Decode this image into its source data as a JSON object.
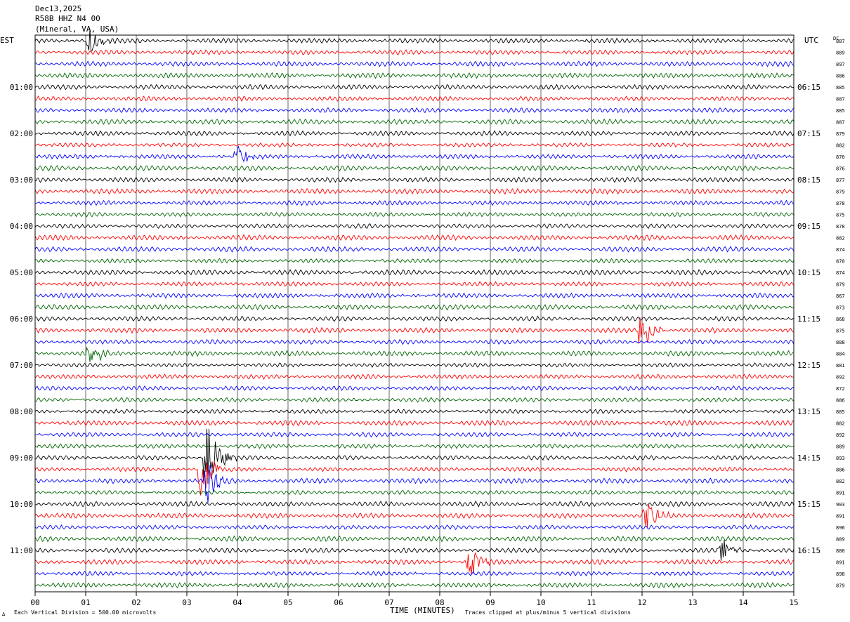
{
  "header": {
    "date": "Dec13,2025",
    "station": "R58B HHZ N4 00",
    "location": "(Mineral, VA, USA)"
  },
  "labels": {
    "left_tz": "EST",
    "right_tz": "UTC",
    "dc_header": "DC",
    "xaxis_title": "TIME (MINUTES)",
    "footer_left": "Each Vertical Division =  500.00 microvolts",
    "footer_right": "Traces clipped at plus/minus 5 vertical divisions",
    "footer_mark": "∆"
  },
  "chart_data": {
    "type": "line",
    "title": "R58B HHZ N4 00",
    "xlabel": "TIME (MINUTES)",
    "xlim": [
      0,
      15
    ],
    "x_ticks": [
      "00",
      "01",
      "02",
      "03",
      "04",
      "05",
      "06",
      "07",
      "08",
      "09",
      "10",
      "11",
      "12",
      "13",
      "14",
      "15"
    ],
    "trace_colors": [
      "#000000",
      "#ff0000",
      "#0000ff",
      "#006600"
    ],
    "left_hour_labels": [
      "01:00",
      "02:00",
      "03:00",
      "04:00",
      "05:00",
      "06:00",
      "07:00",
      "08:00",
      "09:00",
      "10:00",
      "11:00"
    ],
    "right_hour_labels": [
      "06:15",
      "07:15",
      "08:15",
      "09:15",
      "10:15",
      "11:15",
      "12:15",
      "13:15",
      "14:15",
      "15:15",
      "16:15"
    ],
    "dc_offsets": [
      887,
      889,
      897,
      886,
      885,
      887,
      885,
      887,
      879,
      882,
      870,
      876,
      877,
      879,
      878,
      875,
      878,
      882,
      874,
      870,
      874,
      879,
      867,
      873,
      868,
      875,
      888,
      884,
      881,
      892,
      872,
      886,
      885,
      882,
      892,
      889,
      893,
      886,
      882,
      891,
      903,
      891,
      896,
      889,
      880,
      891,
      898,
      879
    ],
    "events": [
      {
        "row": 0,
        "minute": 1.1,
        "amplitude": 1.6
      },
      {
        "row": 10,
        "minute": 4.0,
        "amplitude": 1.4
      },
      {
        "row": 25,
        "minute": 12.0,
        "amplitude": 2.4
      },
      {
        "row": 27,
        "minute": 1.1,
        "amplitude": 1.6
      },
      {
        "row": 36,
        "minute": 3.4,
        "amplitude": 5.0
      },
      {
        "row": 37,
        "minute": 3.3,
        "amplitude": 3.5
      },
      {
        "row": 38,
        "minute": 3.4,
        "amplitude": 2.5
      },
      {
        "row": 41,
        "minute": 12.1,
        "amplitude": 1.6
      },
      {
        "row": 44,
        "minute": 13.6,
        "amplitude": 1.4
      },
      {
        "row": 45,
        "minute": 8.6,
        "amplitude": 1.6
      }
    ]
  }
}
